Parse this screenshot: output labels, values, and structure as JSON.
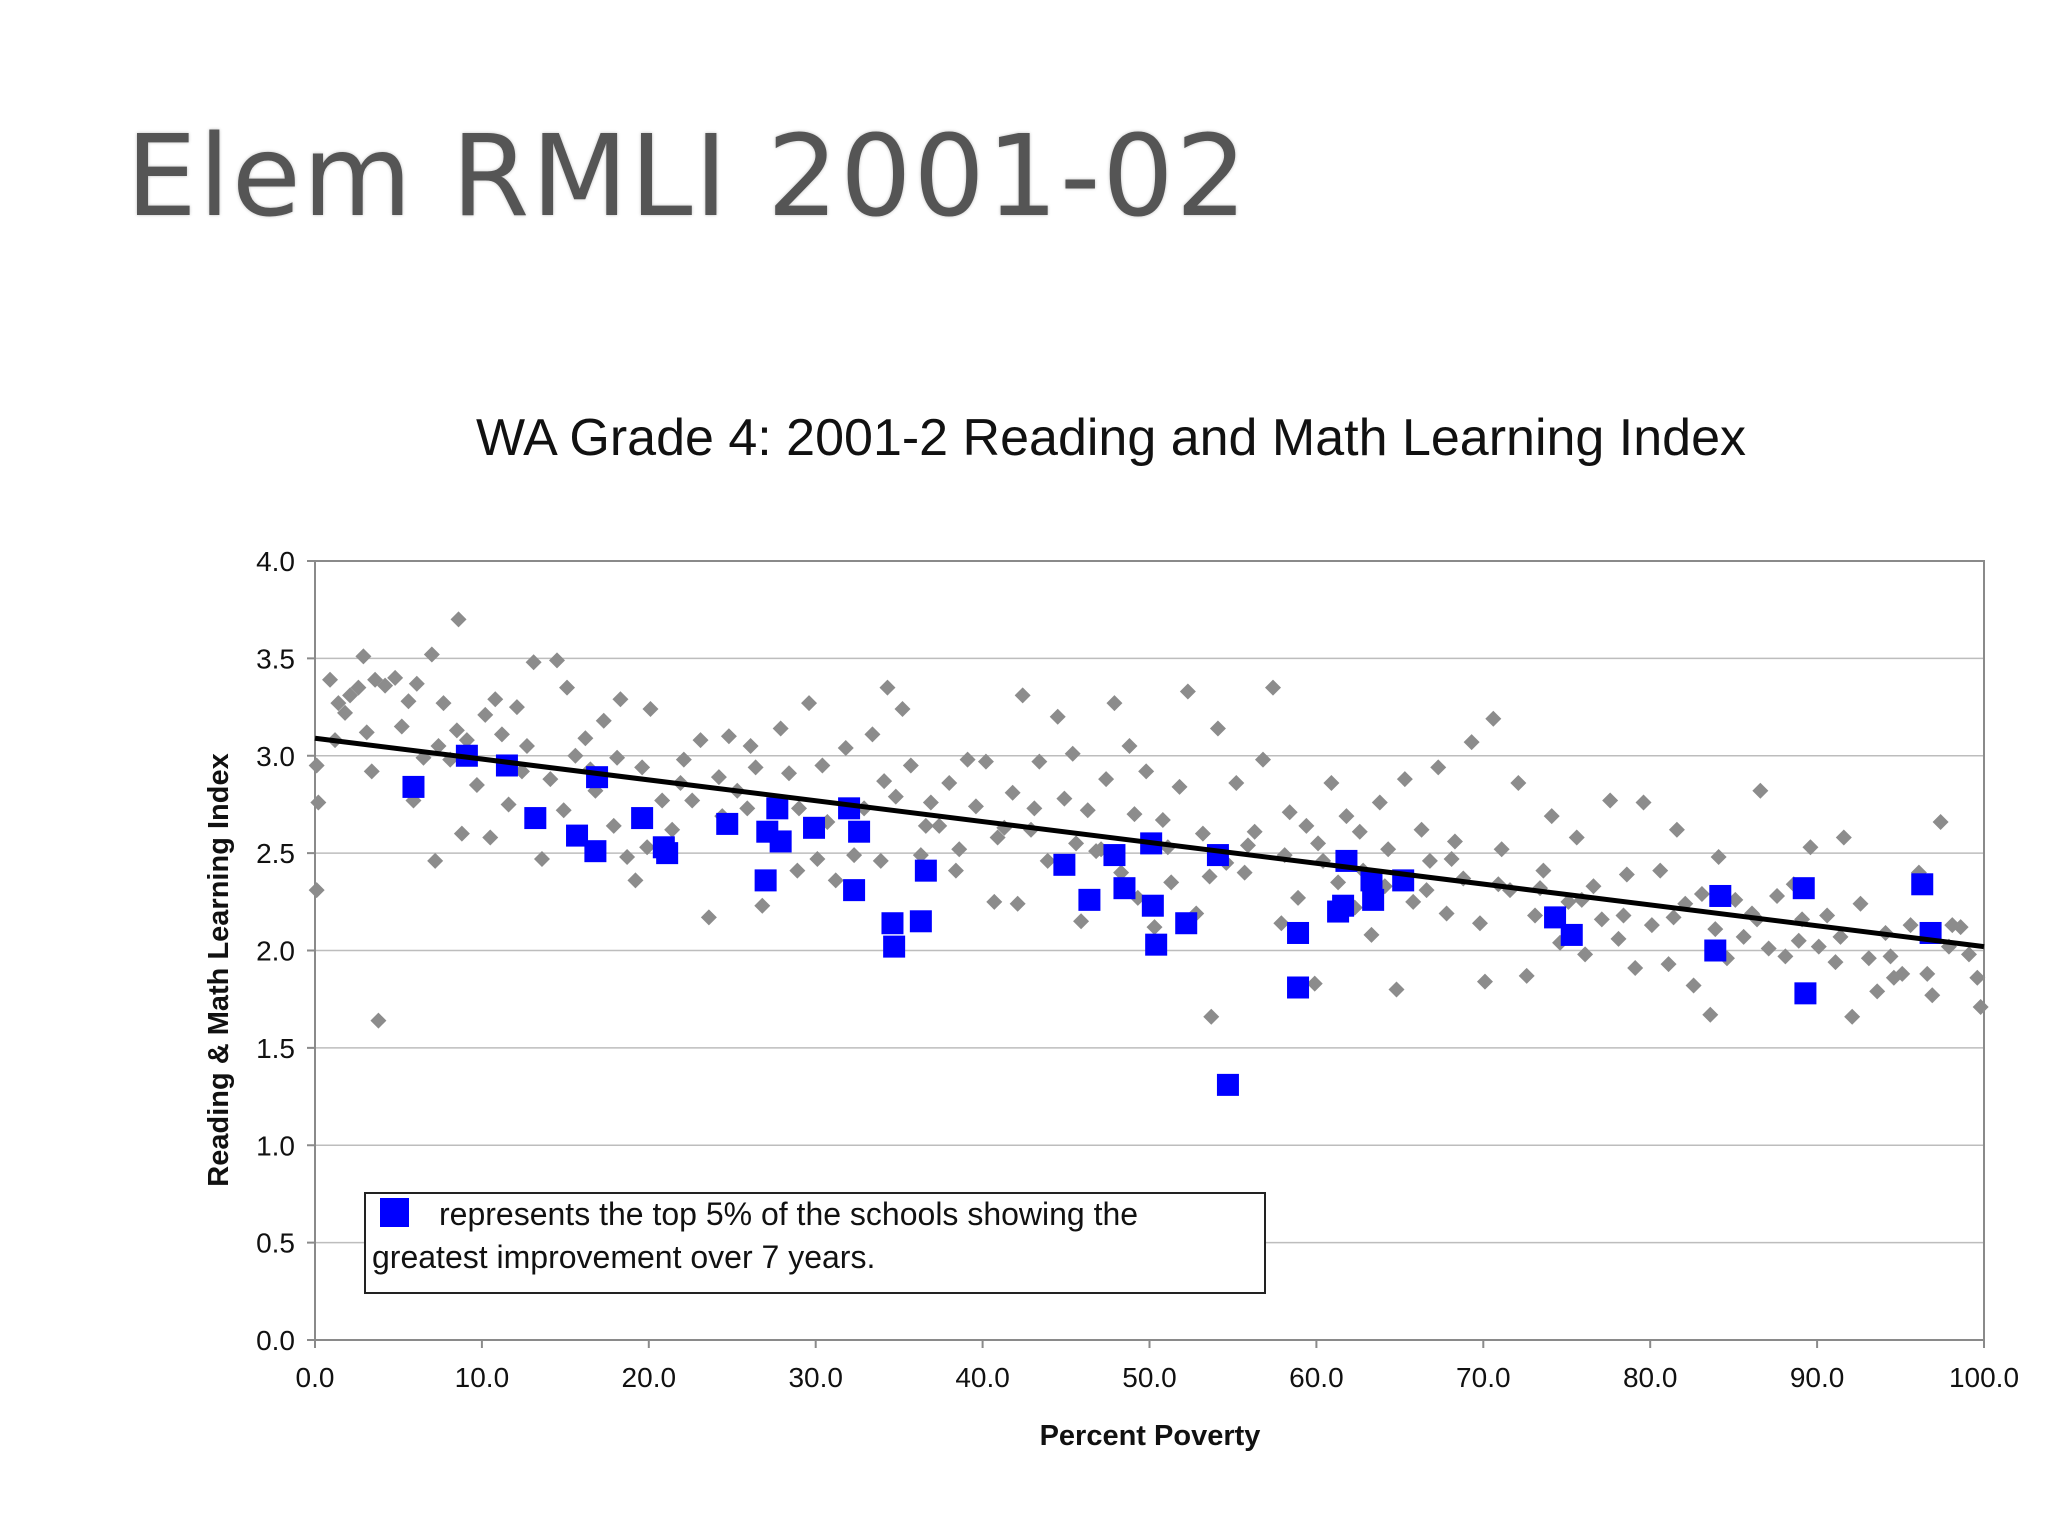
{
  "slide": {
    "title": "Elem RMLI 2001-02"
  },
  "chart_data": {
    "type": "scatter",
    "title": "WA Grade 4: 2001-2 Reading and Math Learning Index",
    "xlabel": "Percent Poverty",
    "ylabel": "Reading & Math Learning Index",
    "xlim": [
      0,
      100
    ],
    "ylim": [
      0,
      4
    ],
    "x_ticks": [
      "0.0",
      "10.0",
      "20.0",
      "30.0",
      "40.0",
      "50.0",
      "60.0",
      "70.0",
      "80.0",
      "90.0",
      "100.0"
    ],
    "y_ticks": [
      "0.0",
      "0.5",
      "1.0",
      "1.5",
      "2.0",
      "2.5",
      "3.0",
      "3.5",
      "4.0"
    ],
    "grid": "horizontal",
    "legend_position": "bottom-left",
    "legend_text": "represents the top 5% of the schools showing the greatest improvement over 7 years.",
    "trendline": {
      "x": [
        0,
        100
      ],
      "y": [
        3.09,
        2.02
      ]
    },
    "colors": {
      "all_schools": "#8c8c8c",
      "top_schools": "#0000ff",
      "trendline": "#000000",
      "grid": "#bdbdbd"
    },
    "series": [
      {
        "marker": "diamond",
        "points": [
          [
            0.1,
            2.95
          ],
          [
            0.2,
            2.76
          ],
          [
            0.1,
            2.31
          ],
          [
            0.9,
            3.39
          ],
          [
            1.4,
            3.27
          ],
          [
            1.8,
            3.22
          ],
          [
            2.1,
            3.31
          ],
          [
            2.6,
            3.35
          ],
          [
            2.9,
            3.51
          ],
          [
            3.1,
            3.12
          ],
          [
            3.6,
            3.39
          ],
          [
            3.8,
            1.64
          ],
          [
            4.2,
            3.36
          ],
          [
            4.8,
            3.4
          ],
          [
            5.2,
            3.15
          ],
          [
            5.6,
            3.28
          ],
          [
            6.1,
            3.37
          ],
          [
            6.5,
            2.99
          ],
          [
            7.0,
            3.52
          ],
          [
            7.4,
            3.05
          ],
          [
            7.7,
            3.27
          ],
          [
            7.2,
            2.46
          ],
          [
            8.1,
            2.98
          ],
          [
            8.5,
            3.13
          ],
          [
            8.6,
            3.7
          ],
          [
            9.1,
            3.08
          ],
          [
            9.7,
            2.85
          ],
          [
            10.2,
            3.21
          ],
          [
            10.8,
            3.29
          ],
          [
            11.2,
            3.11
          ],
          [
            11.6,
            2.75
          ],
          [
            12.1,
            3.25
          ],
          [
            12.7,
            3.05
          ],
          [
            13.1,
            3.48
          ],
          [
            13.6,
            2.47
          ],
          [
            14.1,
            2.88
          ],
          [
            14.5,
            3.49
          ],
          [
            15.1,
            3.35
          ],
          [
            15.6,
            3.0
          ],
          [
            16.2,
            3.09
          ],
          [
            16.8,
            2.82
          ],
          [
            17.3,
            3.18
          ],
          [
            17.9,
            2.64
          ],
          [
            18.3,
            3.29
          ],
          [
            18.7,
            2.48
          ],
          [
            19.2,
            2.36
          ],
          [
            19.6,
            2.94
          ],
          [
            20.1,
            3.24
          ],
          [
            20.8,
            2.77
          ],
          [
            21.4,
            2.62
          ],
          [
            22.1,
            2.98
          ],
          [
            22.6,
            2.77
          ],
          [
            23.1,
            3.08
          ],
          [
            23.6,
            2.17
          ],
          [
            24.2,
            2.89
          ],
          [
            24.8,
            3.1
          ],
          [
            25.3,
            2.82
          ],
          [
            25.9,
            2.73
          ],
          [
            26.4,
            2.94
          ],
          [
            26.8,
            2.23
          ],
          [
            27.4,
            2.58
          ],
          [
            27.9,
            3.14
          ],
          [
            28.4,
            2.91
          ],
          [
            29.0,
            2.73
          ],
          [
            29.6,
            3.27
          ],
          [
            30.1,
            2.47
          ],
          [
            30.7,
            2.66
          ],
          [
            31.2,
            2.36
          ],
          [
            31.8,
            3.04
          ],
          [
            32.3,
            2.49
          ],
          [
            32.9,
            2.73
          ],
          [
            33.4,
            3.11
          ],
          [
            33.9,
            2.46
          ],
          [
            34.3,
            3.35
          ],
          [
            34.8,
            2.79
          ],
          [
            35.2,
            3.24
          ],
          [
            35.7,
            2.95
          ],
          [
            36.3,
            2.49
          ],
          [
            36.9,
            2.76
          ],
          [
            37.4,
            2.64
          ],
          [
            38.0,
            2.86
          ],
          [
            38.6,
            2.52
          ],
          [
            39.1,
            2.98
          ],
          [
            39.6,
            2.74
          ],
          [
            40.2,
            2.97
          ],
          [
            40.7,
            2.25
          ],
          [
            41.3,
            2.63
          ],
          [
            41.8,
            2.81
          ],
          [
            42.1,
            2.24
          ],
          [
            42.4,
            3.31
          ],
          [
            42.9,
            2.62
          ],
          [
            43.4,
            2.97
          ],
          [
            43.9,
            2.46
          ],
          [
            44.5,
            3.2
          ],
          [
            44.9,
            2.78
          ],
          [
            45.4,
            3.01
          ],
          [
            45.9,
            2.15
          ],
          [
            46.3,
            2.72
          ],
          [
            46.8,
            2.51
          ],
          [
            47.4,
            2.88
          ],
          [
            47.9,
            3.27
          ],
          [
            48.3,
            2.4
          ],
          [
            48.8,
            3.05
          ],
          [
            49.3,
            2.27
          ],
          [
            49.8,
            2.92
          ],
          [
            50.3,
            2.12
          ],
          [
            50.8,
            2.67
          ],
          [
            51.3,
            2.35
          ],
          [
            51.8,
            2.84
          ],
          [
            52.3,
            3.33
          ],
          [
            52.8,
            2.19
          ],
          [
            53.2,
            2.6
          ],
          [
            53.7,
            1.66
          ],
          [
            54.1,
            3.14
          ],
          [
            54.6,
            2.45
          ],
          [
            55.2,
            2.86
          ],
          [
            55.7,
            2.4
          ],
          [
            56.3,
            2.61
          ],
          [
            56.8,
            2.98
          ],
          [
            57.4,
            3.35
          ],
          [
            57.9,
            2.14
          ],
          [
            58.4,
            2.71
          ],
          [
            58.9,
            2.27
          ],
          [
            59.4,
            2.64
          ],
          [
            59.9,
            1.83
          ],
          [
            60.4,
            2.46
          ],
          [
            60.9,
            2.86
          ],
          [
            61.3,
            2.35
          ],
          [
            61.8,
            2.69
          ],
          [
            62.3,
            2.22
          ],
          [
            62.8,
            2.41
          ],
          [
            63.3,
            2.08
          ],
          [
            63.8,
            2.76
          ],
          [
            64.3,
            2.52
          ],
          [
            64.8,
            1.8
          ],
          [
            65.3,
            2.88
          ],
          [
            65.8,
            2.25
          ],
          [
            66.3,
            2.62
          ],
          [
            66.8,
            2.46
          ],
          [
            67.3,
            2.94
          ],
          [
            67.8,
            2.19
          ],
          [
            68.3,
            2.56
          ],
          [
            68.8,
            2.37
          ],
          [
            69.3,
            3.07
          ],
          [
            69.8,
            2.14
          ],
          [
            70.1,
            1.84
          ],
          [
            70.6,
            3.19
          ],
          [
            71.1,
            2.52
          ],
          [
            71.6,
            2.31
          ],
          [
            72.1,
            2.86
          ],
          [
            72.6,
            1.87
          ],
          [
            73.1,
            2.18
          ],
          [
            73.6,
            2.41
          ],
          [
            74.1,
            2.69
          ],
          [
            74.6,
            2.04
          ],
          [
            75.1,
            2.25
          ],
          [
            75.6,
            2.58
          ],
          [
            76.1,
            1.98
          ],
          [
            76.6,
            2.33
          ],
          [
            77.1,
            2.16
          ],
          [
            77.6,
            2.77
          ],
          [
            78.1,
            2.06
          ],
          [
            78.6,
            2.39
          ],
          [
            79.1,
            1.91
          ],
          [
            79.6,
            2.76
          ],
          [
            80.1,
            2.13
          ],
          [
            80.6,
            2.41
          ],
          [
            81.1,
            1.93
          ],
          [
            81.6,
            2.62
          ],
          [
            82.1,
            2.24
          ],
          [
            82.6,
            1.82
          ],
          [
            83.1,
            2.29
          ],
          [
            83.6,
            1.67
          ],
          [
            84.1,
            2.48
          ],
          [
            84.6,
            1.96
          ],
          [
            85.1,
            2.26
          ],
          [
            85.6,
            2.07
          ],
          [
            86.1,
            2.19
          ],
          [
            86.6,
            2.82
          ],
          [
            87.1,
            2.01
          ],
          [
            87.6,
            2.28
          ],
          [
            88.1,
            1.97
          ],
          [
            88.6,
            2.34
          ],
          [
            89.1,
            2.16
          ],
          [
            89.6,
            2.53
          ],
          [
            90.1,
            2.02
          ],
          [
            90.6,
            2.18
          ],
          [
            91.1,
            1.94
          ],
          [
            91.6,
            2.58
          ],
          [
            92.1,
            1.66
          ],
          [
            92.6,
            2.24
          ],
          [
            93.1,
            1.96
          ],
          [
            93.6,
            1.79
          ],
          [
            94.1,
            2.09
          ],
          [
            94.6,
            1.86
          ],
          [
            95.1,
            1.88
          ],
          [
            95.6,
            2.13
          ],
          [
            96.1,
            2.4
          ],
          [
            96.6,
            1.88
          ],
          [
            96.9,
            1.77
          ],
          [
            97.4,
            2.66
          ],
          [
            98.1,
            2.13
          ],
          [
            98.6,
            2.12
          ],
          [
            99.1,
            1.98
          ],
          [
            99.6,
            1.86
          ],
          [
            99.8,
            1.71
          ],
          [
            1.2,
            3.08
          ],
          [
            3.4,
            2.92
          ],
          [
            5.9,
            2.77
          ],
          [
            8.8,
            2.6
          ],
          [
            10.5,
            2.58
          ],
          [
            12.4,
            2.92
          ],
          [
            14.9,
            2.72
          ],
          [
            16.5,
            2.93
          ],
          [
            18.1,
            2.99
          ],
          [
            19.9,
            2.53
          ],
          [
            21.9,
            2.86
          ],
          [
            24.4,
            2.69
          ],
          [
            26.1,
            3.05
          ],
          [
            28.9,
            2.41
          ],
          [
            30.4,
            2.95
          ],
          [
            32.6,
            2.61
          ],
          [
            34.1,
            2.87
          ],
          [
            36.6,
            2.64
          ],
          [
            38.4,
            2.41
          ],
          [
            40.9,
            2.58
          ],
          [
            43.1,
            2.73
          ],
          [
            45.6,
            2.55
          ],
          [
            47.1,
            2.52
          ],
          [
            49.1,
            2.7
          ],
          [
            51.1,
            2.53
          ],
          [
            53.6,
            2.38
          ],
          [
            55.9,
            2.54
          ],
          [
            58.1,
            2.49
          ],
          [
            60.1,
            2.55
          ],
          [
            62.6,
            2.61
          ],
          [
            64.1,
            2.33
          ],
          [
            66.6,
            2.31
          ],
          [
            68.1,
            2.47
          ],
          [
            70.9,
            2.34
          ],
          [
            73.4,
            2.32
          ],
          [
            75.9,
            2.26
          ],
          [
            78.4,
            2.18
          ],
          [
            81.4,
            2.17
          ],
          [
            83.9,
            2.11
          ],
          [
            86.4,
            2.16
          ],
          [
            88.9,
            2.05
          ],
          [
            91.4,
            2.07
          ],
          [
            94.4,
            1.97
          ],
          [
            97.9,
            2.02
          ]
        ]
      },
      {
        "marker": "square",
        "points": [
          [
            5.9,
            2.84
          ],
          [
            9.1,
            3.0
          ],
          [
            11.5,
            2.95
          ],
          [
            13.2,
            2.68
          ],
          [
            15.7,
            2.59
          ],
          [
            16.9,
            2.89
          ],
          [
            16.8,
            2.51
          ],
          [
            19.6,
            2.68
          ],
          [
            20.9,
            2.53
          ],
          [
            21.1,
            2.5
          ],
          [
            24.7,
            2.65
          ],
          [
            27.0,
            2.36
          ],
          [
            27.1,
            2.61
          ],
          [
            27.7,
            2.73
          ],
          [
            27.9,
            2.56
          ],
          [
            29.9,
            2.63
          ],
          [
            32.0,
            2.73
          ],
          [
            32.3,
            2.31
          ],
          [
            32.6,
            2.61
          ],
          [
            34.6,
            2.14
          ],
          [
            34.7,
            2.02
          ],
          [
            36.3,
            2.15
          ],
          [
            36.6,
            2.41
          ],
          [
            44.9,
            2.44
          ],
          [
            46.4,
            2.26
          ],
          [
            47.9,
            2.49
          ],
          [
            48.5,
            2.32
          ],
          [
            50.1,
            2.55
          ],
          [
            50.2,
            2.23
          ],
          [
            50.4,
            2.03
          ],
          [
            52.2,
            2.14
          ],
          [
            54.1,
            2.49
          ],
          [
            54.7,
            1.31
          ],
          [
            58.9,
            2.09
          ],
          [
            58.9,
            1.81
          ],
          [
            61.3,
            2.2
          ],
          [
            61.6,
            2.23
          ],
          [
            61.8,
            2.46
          ],
          [
            63.3,
            2.36
          ],
          [
            63.4,
            2.26
          ],
          [
            65.2,
            2.36
          ],
          [
            74.3,
            2.17
          ],
          [
            75.3,
            2.08
          ],
          [
            83.9,
            2.0
          ],
          [
            84.2,
            2.28
          ],
          [
            89.2,
            2.32
          ],
          [
            89.3,
            1.78
          ],
          [
            96.3,
            2.34
          ],
          [
            96.8,
            2.09
          ]
        ]
      }
    ]
  }
}
